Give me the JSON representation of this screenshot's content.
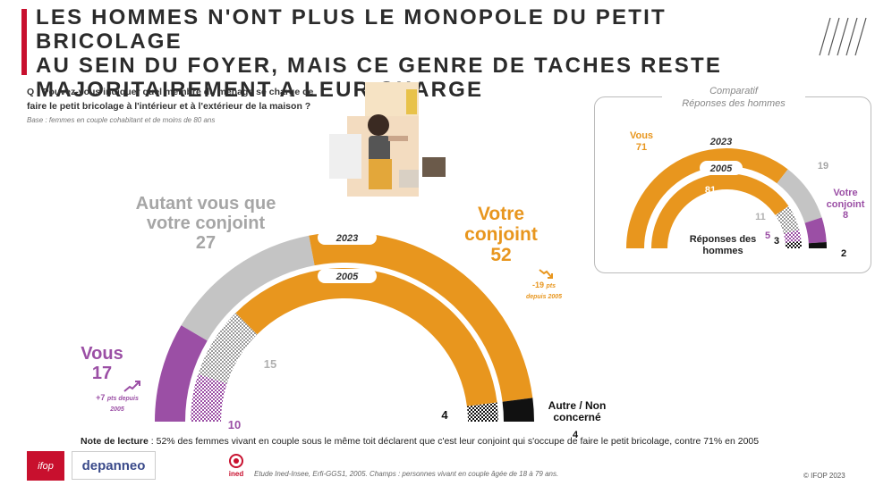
{
  "title": {
    "lines": [
      "LES HOMMES N'ONT PLUS LE MONOPOLE DU PETIT BRICOLAGE",
      "AU SEIN DU FOYER, MAIS CE GENRE DE TACHES RESTE",
      "MAJORITAIREMENT A LEUR CHARGE"
    ]
  },
  "question": "Q : Pouvez-vous indiquer quel membre du ménage se charge de faire le petit bricolage à l'intérieur et à l'extérieur de la maison ?",
  "base": "Base : femmes en couple cohabitant et de moins de 80 ans",
  "labels": {
    "autant": "Autant vous que votre conjoint",
    "autant_value": "27",
    "votre_conjoint": "Votre conjoint",
    "votre_conjoint_value": "52",
    "vous": "Vous",
    "vous_value": "17",
    "autre": "Autre / Non concerné",
    "trend_conjoint_value": "-19",
    "trend_conjoint_unit": "pts",
    "trend_conjoint_since": "depuis 2005",
    "trend_vous_value": "+7",
    "trend_vous_unit": "pts depuis",
    "trend_vous_since": "2005"
  },
  "colors": {
    "vous": "#9b4fa5",
    "autant": "#c4c4c4",
    "votre_conjoint": "#e8961e",
    "autre": "#111111",
    "title_accent": "#c8102e"
  },
  "chart_data": [
    {
      "type": "semi-donut",
      "title": "",
      "categories": [
        "Vous",
        "Autant vous que votre conjoint",
        "Votre conjoint",
        "Autre / Non concerné"
      ],
      "series": [
        {
          "name": "2023",
          "values": [
            17,
            27,
            52,
            4
          ]
        },
        {
          "name": "2005",
          "values": [
            10,
            15,
            71,
            4
          ]
        }
      ]
    },
    {
      "type": "semi-donut",
      "title": "Comparatif Réponses des hommes",
      "categories": [
        "Vous",
        "Autant vous que votre conjoint",
        "Votre conjoint",
        "Autre / Non concerné"
      ],
      "series": [
        {
          "name": "2023",
          "values": [
            71,
            19,
            8,
            2
          ]
        },
        {
          "name": "2005",
          "values": [
            81,
            11,
            5,
            3
          ]
        }
      ]
    }
  ],
  "comparatif": {
    "title_line1": "Comparatif",
    "title_line2": "Réponses des hommes",
    "vous_label": "Vous",
    "conjoint_label": "Votre conjoint",
    "center_label": "Réponses des hommes"
  },
  "note": {
    "label": "Note de lecture",
    "text": " : 52% des femmes vivant en couple sous le même toit déclarent que c'est leur conjoint qui s'occupe de faire le petit bricolage, contre 71% en 2005"
  },
  "source": "Etude Ined-Insee, Erfi-GGS1, 2005. Champs : personnes vivant en couple âgée de 18 à 79 ans.",
  "copyright": "© IFOP 2023",
  "logos": {
    "ifop": "ifop",
    "depanneo": "depanneo",
    "ined": "ined"
  }
}
